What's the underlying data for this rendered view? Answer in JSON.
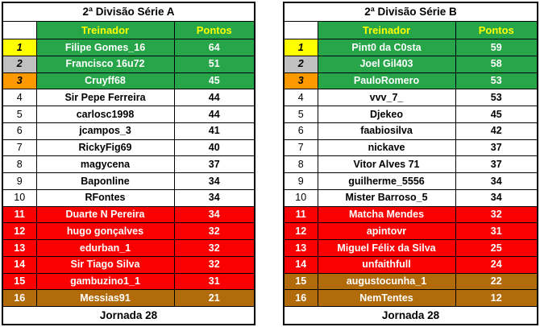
{
  "jornada_label": "Jornada 28",
  "colors": {
    "header_green": "#26A549",
    "header_label_yellow": "#FFFF00",
    "top3_row_green": "#26A549",
    "rank1_gold": "#FFFF00",
    "rank2_silver": "#C0C0C0",
    "rank3_orange": "#FF9900",
    "relegation_red": "#FA0000",
    "bottom_brown": "#B26B0A",
    "border_black": "#000000"
  },
  "tables": [
    {
      "title": "2ª Divisão Série A",
      "columns": {
        "trainer": "Treinador",
        "points": "Pontos"
      },
      "footer": "Jornada 28",
      "rows": [
        {
          "rank": "1",
          "name": "Filipe Gomes_16",
          "points": "64",
          "zone": "gold"
        },
        {
          "rank": "2",
          "name": "Francisco 16u72",
          "points": "51",
          "zone": "silver"
        },
        {
          "rank": "3",
          "name": "Cruyff68",
          "points": "45",
          "zone": "bronze"
        },
        {
          "rank": "4",
          "name": "Sir Pepe Ferreira",
          "points": "44",
          "zone": "mid"
        },
        {
          "rank": "5",
          "name": "carlosc1998",
          "points": "44",
          "zone": "mid"
        },
        {
          "rank": "6",
          "name": "jcampos_3",
          "points": "41",
          "zone": "mid"
        },
        {
          "rank": "7",
          "name": "RickyFig69",
          "points": "40",
          "zone": "mid"
        },
        {
          "rank": "8",
          "name": "magycena",
          "points": "37",
          "zone": "mid"
        },
        {
          "rank": "9",
          "name": "Baponline",
          "points": "34",
          "zone": "mid"
        },
        {
          "rank": "10",
          "name": "RFontes",
          "points": "34",
          "zone": "mid"
        },
        {
          "rank": "11",
          "name": "Duarte N Pereira",
          "points": "34",
          "zone": "red"
        },
        {
          "rank": "12",
          "name": "hugo gonçalves",
          "points": "32",
          "zone": "red"
        },
        {
          "rank": "13",
          "name": "edurban_1",
          "points": "32",
          "zone": "red"
        },
        {
          "rank": "14",
          "name": "Sir Tiago Silva",
          "points": "32",
          "zone": "red"
        },
        {
          "rank": "15",
          "name": "gambuzino1_1",
          "points": "31",
          "zone": "red"
        },
        {
          "rank": "16",
          "name": "Messias91",
          "points": "21",
          "zone": "brown"
        }
      ]
    },
    {
      "title": "2ª Divisão Série B",
      "columns": {
        "trainer": "Treinador",
        "points": "Pontos"
      },
      "footer": "Jornada 28",
      "rows": [
        {
          "rank": "1",
          "name": "Pint0 da C0sta",
          "points": "59",
          "zone": "gold"
        },
        {
          "rank": "2",
          "name": "Joel Gil403",
          "points": "58",
          "zone": "silver"
        },
        {
          "rank": "3",
          "name": "PauloRomero",
          "points": "53",
          "zone": "bronze"
        },
        {
          "rank": "4",
          "name": "vvv_7_",
          "points": "53",
          "zone": "mid"
        },
        {
          "rank": "5",
          "name": "Djekeo",
          "points": "45",
          "zone": "mid"
        },
        {
          "rank": "6",
          "name": "faabiosilva",
          "points": "42",
          "zone": "mid"
        },
        {
          "rank": "7",
          "name": "nickave",
          "points": "37",
          "zone": "mid"
        },
        {
          "rank": "8",
          "name": "Vitor Alves 71",
          "points": "37",
          "zone": "mid"
        },
        {
          "rank": "9",
          "name": "guilherme_5556",
          "points": "34",
          "zone": "mid"
        },
        {
          "rank": "10",
          "name": "Mister Barroso_5",
          "points": "34",
          "zone": "mid"
        },
        {
          "rank": "11",
          "name": "Matcha Mendes",
          "points": "32",
          "zone": "red"
        },
        {
          "rank": "12",
          "name": "apintovr",
          "points": "31",
          "zone": "red"
        },
        {
          "rank": "13",
          "name": "Miguel Félix da Silva",
          "points": "25",
          "zone": "red"
        },
        {
          "rank": "14",
          "name": "unfaithfull",
          "points": "24",
          "zone": "red"
        },
        {
          "rank": "15",
          "name": "augustocunha_1",
          "points": "22",
          "zone": "brown"
        },
        {
          "rank": "16",
          "name": "NemTentes",
          "points": "12",
          "zone": "brown"
        }
      ]
    }
  ]
}
